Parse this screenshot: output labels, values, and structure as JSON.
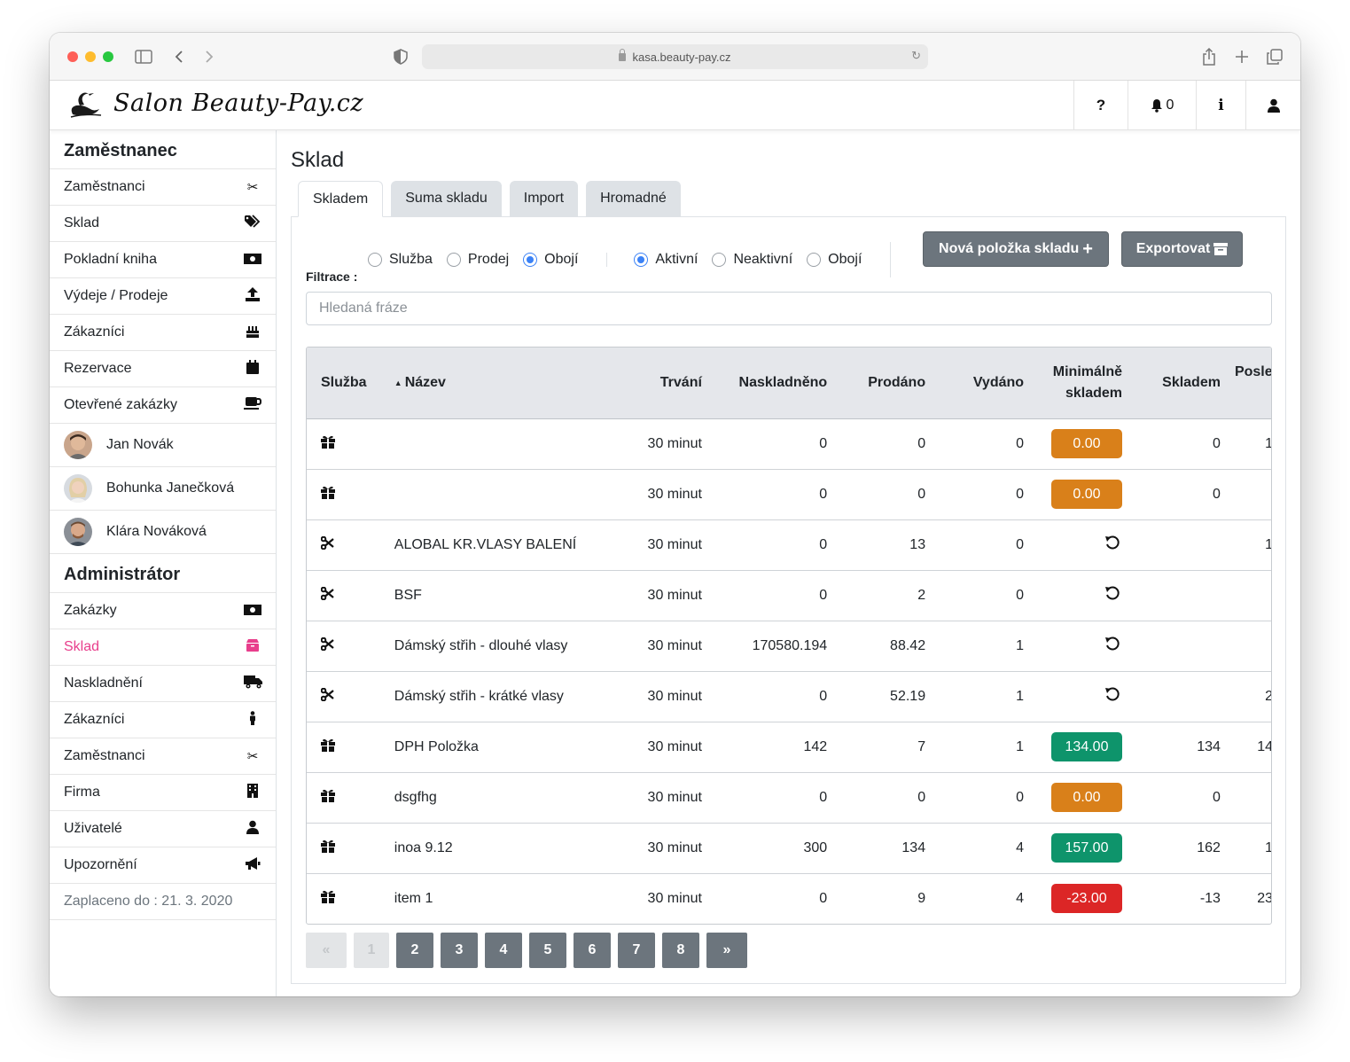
{
  "browser": {
    "url": "kasa.beauty-pay.cz"
  },
  "header": {
    "logo_text": "Salon  Beauty-Pay.cz",
    "help_label": "?",
    "notifications_count": "0",
    "info_label": "i"
  },
  "sidebar": {
    "employee_heading": "Zaměstnanec",
    "employee_items": [
      {
        "label": "Zaměstnanci",
        "icon": "scissors-icon"
      },
      {
        "label": "Sklad",
        "icon": "tags-icon"
      },
      {
        "label": "Pokladní kniha",
        "icon": "money-icon"
      },
      {
        "label": "Výdeje / Prodeje",
        "icon": "upload-icon"
      },
      {
        "label": "Zákazníci",
        "icon": "birthday-cake-icon"
      },
      {
        "label": "Rezervace",
        "icon": "calendar-icon"
      },
      {
        "label": "Otevřené zakázky",
        "icon": "coffee-icon"
      }
    ],
    "people": [
      {
        "name": "Jan Novák"
      },
      {
        "name": "Bohunka Janečková"
      },
      {
        "name": "Klára Nováková"
      }
    ],
    "admin_heading": "Administrátor",
    "admin_items": [
      {
        "label": "Zakázky",
        "icon": "money-icon"
      },
      {
        "label": "Sklad",
        "icon": "box-icon",
        "active": true
      },
      {
        "label": "Naskladnění",
        "icon": "truck-icon"
      },
      {
        "label": "Zákazníci",
        "icon": "person-icon"
      },
      {
        "label": "Zaměstnanci",
        "icon": "scissors-icon"
      },
      {
        "label": "Firma",
        "icon": "building-icon"
      },
      {
        "label": "Uživatelé",
        "icon": "user-icon"
      },
      {
        "label": "Upozornění",
        "icon": "megaphone-icon"
      }
    ],
    "paid_until": "Zaplaceno do : 21. 3. 2020"
  },
  "main": {
    "title": "Sklad",
    "tabs": [
      "Skladem",
      "Suma skladu",
      "Import",
      "Hromadné"
    ],
    "active_tab": "Skladem",
    "type_filter": {
      "options": [
        "Služba",
        "Prodej",
        "Obojí"
      ],
      "selected": "Obojí"
    },
    "status_filter": {
      "options": [
        "Aktivní",
        "Neaktivní",
        "Obojí"
      ],
      "selected": "Aktivní"
    },
    "new_item_button": "Nová položka skladu",
    "export_button": "Exportovat",
    "filter_label": "Filtrace :",
    "search_placeholder": "Hledaná fráze",
    "search_value": "",
    "colors": {
      "badge_orange": "#d9801a",
      "badge_green": "#0e946b",
      "badge_red": "#dc2626",
      "active_pink": "#e83e8c"
    }
  },
  "table": {
    "headers": {
      "service": "Služba",
      "name": "Název",
      "duration": "Trvání",
      "stocked": "Naskladněno",
      "sold": "Prodáno",
      "issued": "Vydáno",
      "min_stock": "Minimálně skladem",
      "in_stock": "Skladem",
      "last": "Posled"
    },
    "rows": [
      {
        "icon": "gift-icon",
        "name": "",
        "duration": "30 minut",
        "stocked": "0",
        "sold": "0",
        "issued": "0",
        "min": "0.00",
        "min_style": "orange",
        "in_stock": "0",
        "last": "1"
      },
      {
        "icon": "gift-icon",
        "name": "",
        "duration": "30 minut",
        "stocked": "0",
        "sold": "0",
        "issued": "0",
        "min": "0.00",
        "min_style": "orange",
        "in_stock": "0",
        "last": ""
      },
      {
        "icon": "scissors-icon",
        "name": "ALOBAL KR.VLASY BALENÍ",
        "duration": "30 minut",
        "stocked": "0",
        "sold": "13",
        "issued": "0",
        "min": "",
        "min_style": "reset",
        "in_stock": "",
        "last": "1"
      },
      {
        "icon": "scissors-icon",
        "name": "BSF",
        "duration": "30 minut",
        "stocked": "0",
        "sold": "2",
        "issued": "0",
        "min": "",
        "min_style": "reset",
        "in_stock": "",
        "last": ""
      },
      {
        "icon": "scissors-icon",
        "name": "Dámský střih - dlouhé vlasy",
        "duration": "30 minut",
        "stocked": "170580.194",
        "sold": "88.42",
        "issued": "1",
        "min": "",
        "min_style": "reset",
        "in_stock": "",
        "last": ""
      },
      {
        "icon": "scissors-icon",
        "name": "Dámský střih - krátké vlasy",
        "duration": "30 minut",
        "stocked": "0",
        "sold": "52.19",
        "issued": "1",
        "min": "",
        "min_style": "reset",
        "in_stock": "",
        "last": "2"
      },
      {
        "icon": "gift-icon",
        "name": "DPH Položka",
        "duration": "30 minut",
        "stocked": "142",
        "sold": "7",
        "issued": "1",
        "min": "134.00",
        "min_style": "green",
        "in_stock": "134",
        "last": "14"
      },
      {
        "icon": "gift-icon",
        "name": "dsgfhg",
        "duration": "30 minut",
        "stocked": "0",
        "sold": "0",
        "issued": "0",
        "min": "0.00",
        "min_style": "orange",
        "in_stock": "0",
        "last": ""
      },
      {
        "icon": "gift-icon",
        "name": "inoa 9.12",
        "duration": "30 minut",
        "stocked": "300",
        "sold": "134",
        "issued": "4",
        "min": "157.00",
        "min_style": "green",
        "in_stock": "162",
        "last": "1"
      },
      {
        "icon": "gift-icon",
        "name": "item 1",
        "duration": "30 minut",
        "stocked": "0",
        "sold": "9",
        "issued": "4",
        "min": "-23.00",
        "min_style": "red",
        "in_stock": "-13",
        "last": "23"
      }
    ]
  },
  "pagination": {
    "first": "«",
    "current": "1",
    "pages": [
      "2",
      "3",
      "4",
      "5",
      "6",
      "7",
      "8"
    ],
    "next": "»"
  }
}
